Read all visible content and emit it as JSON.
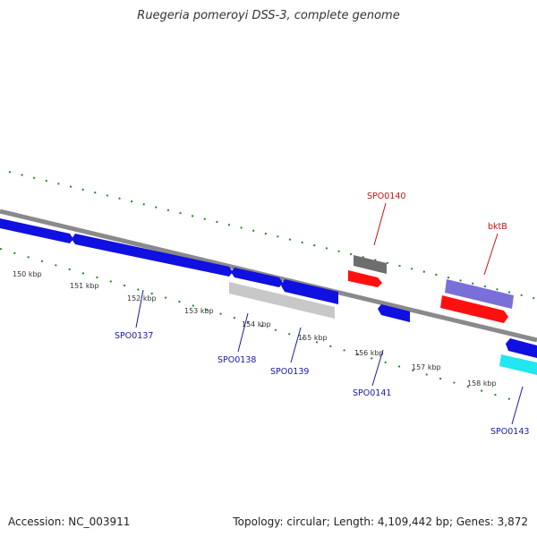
{
  "title": "Ruegeria pomeroyi DSS-3, complete genome",
  "footer": {
    "accession": "Accession: NC_003911",
    "topology": "Topology: circular; Length: 4,109,442 bp; Genes: 3,872"
  },
  "ticks": [
    "150 kbp",
    "151 kbp",
    "152 kbp",
    "153 kbp",
    "154 kbp",
    "155 kbp",
    "156 kbp",
    "157 kbp",
    "158 kbp"
  ],
  "genes": {
    "SPO0137": "SPO0137",
    "SPO0138": "SPO0138",
    "SPO0139": "SPO0139",
    "SPO0140": "SPO0140",
    "SPO0141": "SPO0141",
    "SPO0143": "SPO0143",
    "bktB": "bktB"
  },
  "colors": {
    "backbone": "#8a8a8a",
    "forward_tick": "#1f8a1f",
    "gene_blue": "#1010e0",
    "gene_red": "#ff1010",
    "gene_gray": "#6e6e6e",
    "gene_lightgray": "#c8c8c8",
    "gene_purple": "#7a6fd8",
    "gene_cyan": "#22e6f0",
    "label_blue": "#1a1aa8",
    "label_red": "#cc1111"
  }
}
